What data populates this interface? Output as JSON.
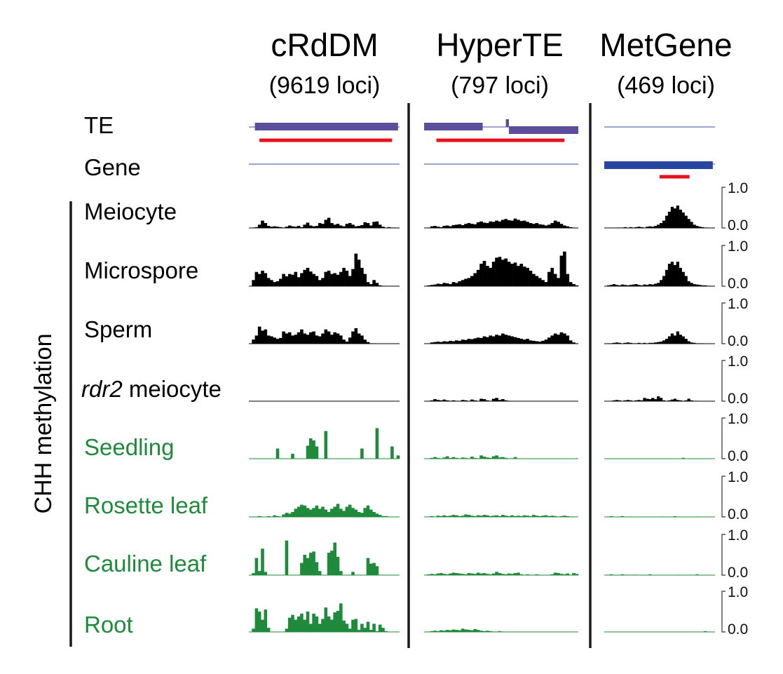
{
  "colors": {
    "te_bar": "#5d4e9c",
    "gene_bar": "#2745a1",
    "locus_bar": "#e5121c",
    "black_track": "#000000",
    "green_track": "#1f8a3b",
    "baseline_blue": "#3a4aa0",
    "divider": "#1a1a1a"
  },
  "columns": [
    {
      "title": "cRdDM",
      "subtitle": "(9619 loci)"
    },
    {
      "title": "HyperTE",
      "subtitle": "(797 loci)"
    },
    {
      "title": "MetGene",
      "subtitle": "(469 loci)"
    }
  ],
  "annotation_labels": {
    "te": "TE",
    "gene": "Gene"
  },
  "y_axis_label": "CHH methylation",
  "chart_data": {
    "type": "bar",
    "ylim": [
      0.0,
      1.0
    ],
    "tick_labels": [
      "1.0",
      "0.0"
    ],
    "annotation_tracks": {
      "cRdDM": {
        "te": [
          [
            0.04,
            0.99
          ]
        ],
        "gene": [],
        "locus": [
          [
            0.07,
            0.95
          ]
        ]
      },
      "HyperTE": {
        "te": [
          [
            0.0,
            0.38
          ],
          [
            0.53,
            0.55
          ],
          [
            0.55,
            1.0
          ]
        ],
        "gene": [],
        "locus": [
          [
            0.08,
            0.91
          ]
        ]
      },
      "MetGene": {
        "te": [],
        "gene": [
          [
            0.0,
            0.98
          ]
        ],
        "locus": [
          [
            0.5,
            0.77
          ]
        ]
      }
    },
    "series": [
      {
        "name": "Meiocyte",
        "color": "black",
        "cRdDM": [
          0,
          0.01,
          0.02,
          0.08,
          0.18,
          0.12,
          0.05,
          0.03,
          0.04,
          0.03,
          0.02,
          0.01,
          0.03,
          0.06,
          0.04,
          0.03,
          0.05,
          0.02,
          0.08,
          0.13,
          0.06,
          0.04,
          0.05,
          0.12,
          0.1,
          0.2,
          0.25,
          0.12,
          0.08,
          0.1,
          0.06,
          0.04,
          0.1,
          0.12,
          0.08,
          0.04,
          0.05,
          0.07,
          0.14,
          0.12,
          0.06,
          0.15,
          0.16,
          0.08,
          0.03,
          0.01,
          0.02,
          0.01,
          0.01,
          0
        ],
        "HyperTE": [
          0,
          0.01,
          0.04,
          0.05,
          0.03,
          0.02,
          0.05,
          0.06,
          0.04,
          0.07,
          0.08,
          0.09,
          0.07,
          0.1,
          0.12,
          0.1,
          0.09,
          0.14,
          0.16,
          0.13,
          0.12,
          0.16,
          0.15,
          0.18,
          0.16,
          0.2,
          0.22,
          0.19,
          0.18,
          0.23,
          0.2,
          0.17,
          0.18,
          0.15,
          0.12,
          0.1,
          0.12,
          0.09,
          0.08,
          0.06,
          0.08,
          0.12,
          0.18,
          0.15,
          0.1,
          0.06,
          0.04,
          0.02,
          0.01,
          0
        ],
        "MetGene": [
          0,
          0,
          0,
          0,
          0.01,
          0.01,
          0.01,
          0.02,
          0,
          0.02,
          0.01,
          0.02,
          0.03,
          0.02,
          0.01,
          0.03,
          0.04,
          0.03,
          0.05,
          0.08,
          0.12,
          0.18,
          0.3,
          0.4,
          0.52,
          0.48,
          0.55,
          0.45,
          0.38,
          0.3,
          0.22,
          0.15,
          0.08,
          0.05,
          0.03,
          0.02,
          0.01,
          0.01,
          0,
          0
        ]
      },
      {
        "name": "Microspore",
        "color": "black",
        "cRdDM": [
          0,
          0.15,
          0.35,
          0.3,
          0.38,
          0.32,
          0.2,
          0.15,
          0.1,
          0.12,
          0.18,
          0.3,
          0.24,
          0.3,
          0.28,
          0.35,
          0.22,
          0.32,
          0.4,
          0.45,
          0.36,
          0.3,
          0.25,
          0.15,
          0.2,
          0.35,
          0.38,
          0.3,
          0.32,
          0.28,
          0.35,
          0.45,
          0.38,
          0.25,
          0.42,
          0.8,
          0.65,
          0.45,
          0.3,
          0.1,
          0.05,
          0.15,
          0.08,
          0.02,
          0.01,
          0,
          0,
          0,
          0,
          0
        ],
        "HyperTE": [
          0,
          0.02,
          0.03,
          0.04,
          0.06,
          0.05,
          0.08,
          0.07,
          0.05,
          0.1,
          0.08,
          0.12,
          0.15,
          0.18,
          0.2,
          0.25,
          0.32,
          0.4,
          0.55,
          0.62,
          0.5,
          0.45,
          0.6,
          0.7,
          0.72,
          0.65,
          0.68,
          0.6,
          0.55,
          0.58,
          0.5,
          0.55,
          0.48,
          0.45,
          0.38,
          0.3,
          0.25,
          0.2,
          0.15,
          0.1,
          0.35,
          0.45,
          0.3,
          0.2,
          0.75,
          0.85,
          0.3,
          0.1,
          0.05,
          0.02
        ],
        "MetGene": [
          0,
          0.02,
          0.03,
          0.05,
          0.03,
          0.02,
          0.04,
          0.03,
          0.02,
          0.03,
          0.04,
          0.05,
          0.03,
          0.02,
          0.04,
          0.03,
          0.05,
          0.04,
          0.06,
          0.08,
          0.15,
          0.25,
          0.4,
          0.55,
          0.6,
          0.52,
          0.6,
          0.45,
          0.35,
          0.25,
          0.12,
          0.08,
          0.05,
          0.04,
          0.03,
          0.02,
          0.02,
          0.01,
          0.01,
          0
        ]
      },
      {
        "name": "Sperm",
        "color": "black",
        "cRdDM": [
          0,
          0.1,
          0.2,
          0.42,
          0.32,
          0.35,
          0.2,
          0.18,
          0.15,
          0.12,
          0.14,
          0.3,
          0.25,
          0.28,
          0.2,
          0.22,
          0.28,
          0.35,
          0.25,
          0.22,
          0.28,
          0.3,
          0.2,
          0.18,
          0.25,
          0.35,
          0.3,
          0.22,
          0.28,
          0.25,
          0.2,
          0.1,
          0.05,
          0.15,
          0.3,
          0.38,
          0.25,
          0.2,
          0.1,
          0.04,
          0.01,
          0.01,
          0,
          0,
          0,
          0,
          0,
          0,
          0,
          0
        ],
        "HyperTE": [
          0,
          0.01,
          0.03,
          0.04,
          0.05,
          0.04,
          0.06,
          0.05,
          0.07,
          0.06,
          0.08,
          0.07,
          0.1,
          0.09,
          0.12,
          0.11,
          0.13,
          0.15,
          0.14,
          0.18,
          0.16,
          0.2,
          0.18,
          0.22,
          0.2,
          0.25,
          0.22,
          0.2,
          0.18,
          0.16,
          0.14,
          0.12,
          0.1,
          0.12,
          0.08,
          0.07,
          0.06,
          0.05,
          0.07,
          0.1,
          0.15,
          0.2,
          0.25,
          0.22,
          0.28,
          0.25,
          0.2,
          0.08,
          0.03,
          0.01
        ],
        "MetGene": [
          0,
          0.01,
          0.01,
          0.02,
          0.03,
          0.02,
          0.01,
          0.02,
          0.03,
          0.02,
          0.01,
          0.01,
          0.02,
          0.01,
          0.02,
          0.01,
          0.02,
          0.02,
          0.03,
          0.04,
          0.05,
          0.08,
          0.12,
          0.18,
          0.25,
          0.2,
          0.3,
          0.22,
          0.18,
          0.12,
          0.06,
          0.03,
          0.02,
          0.01,
          0.01,
          0.01,
          0,
          0,
          0,
          0
        ]
      },
      {
        "name": "rdr2 meiocyte",
        "name_italic": "rdr2",
        "name_rest": " meiocyte",
        "color": "black",
        "cRdDM": [
          0,
          0,
          0,
          0,
          0,
          0,
          0,
          0,
          0,
          0,
          0,
          0,
          0,
          0,
          0,
          0,
          0,
          0,
          0,
          0,
          0,
          0,
          0,
          0,
          0,
          0,
          0,
          0,
          0,
          0,
          0,
          0,
          0,
          0,
          0,
          0,
          0,
          0,
          0,
          0,
          0,
          0,
          0,
          0,
          0,
          0,
          0,
          0,
          0,
          0
        ],
        "HyperTE": [
          0,
          0.01,
          0.02,
          0.05,
          0.03,
          0.02,
          0.04,
          0.02,
          0.01,
          0.02,
          0.01,
          0.01,
          0.03,
          0.02,
          0.01,
          0.04,
          0.02,
          0.01,
          0.06,
          0.05,
          0.02,
          0.01,
          0.06,
          0.08,
          0.03,
          0.05,
          0.02,
          0.01,
          0,
          0,
          0,
          0,
          0,
          0,
          0,
          0,
          0,
          0,
          0,
          0,
          0,
          0,
          0,
          0,
          0,
          0,
          0,
          0,
          0,
          0
        ],
        "MetGene": [
          0,
          0,
          0.01,
          0.02,
          0.03,
          0.02,
          0.01,
          0.02,
          0.03,
          0.02,
          0.01,
          0.02,
          0.03,
          0.02,
          0.08,
          0.06,
          0.05,
          0.08,
          0.05,
          0.12,
          0.08,
          0.02,
          0.01,
          0.02,
          0.04,
          0.06,
          0.03,
          0.02,
          0.01,
          0.02,
          0.06,
          0.02,
          0.01,
          0.01,
          0,
          0,
          0,
          0,
          0,
          0
        ]
      },
      {
        "name": "Seedling",
        "color": "green",
        "cRdDM": [
          0,
          0,
          0,
          0,
          0,
          0,
          0,
          0,
          0,
          0.25,
          0,
          0,
          0,
          0,
          0.12,
          0,
          0,
          0,
          0,
          0.32,
          0.5,
          0.45,
          0.3,
          0,
          0,
          0.68,
          0,
          0,
          0,
          0,
          0,
          0,
          0,
          0,
          0,
          0,
          0,
          0.25,
          0,
          0,
          0,
          0,
          0.75,
          0,
          0,
          0,
          0,
          0.3,
          0,
          0.08
        ],
        "HyperTE": [
          0,
          0.01,
          0.02,
          0.04,
          0.02,
          0.01,
          0.03,
          0.06,
          0.02,
          0.04,
          0.02,
          0.01,
          0.03,
          0.02,
          0.01,
          0.05,
          0.02,
          0.01,
          0.08,
          0.05,
          0.03,
          0.02,
          0.06,
          0.08,
          0.03,
          0.04,
          0.02,
          0.01,
          0.01,
          0.04,
          0,
          0,
          0,
          0,
          0,
          0,
          0,
          0,
          0,
          0,
          0,
          0,
          0,
          0,
          0,
          0,
          0,
          0,
          0,
          0
        ],
        "MetGene": [
          0,
          0,
          0,
          0,
          0,
          0,
          0,
          0,
          0,
          0,
          0,
          0,
          0,
          0,
          0,
          0,
          0,
          0,
          0,
          0,
          0,
          0,
          0,
          0,
          0,
          0,
          0,
          0,
          0.02,
          0,
          0,
          0,
          0,
          0,
          0,
          0,
          0,
          0,
          0,
          0
        ]
      },
      {
        "name": "Rosette leaf",
        "color": "green",
        "cRdDM": [
          0,
          0,
          0.01,
          0.02,
          0.01,
          0,
          0.02,
          0.01,
          0.04,
          0.02,
          0.01,
          0.06,
          0.1,
          0.08,
          0.12,
          0.2,
          0.25,
          0.3,
          0.28,
          0.22,
          0.18,
          0.22,
          0.28,
          0.2,
          0.25,
          0.18,
          0.12,
          0.2,
          0.25,
          0.32,
          0.2,
          0.15,
          0.25,
          0.3,
          0.22,
          0.18,
          0.12,
          0.1,
          0.22,
          0.28,
          0.18,
          0.12,
          0.08,
          0.05,
          0.02,
          0.02,
          0.01,
          0,
          0,
          0
        ],
        "HyperTE": [
          0,
          0.01,
          0.02,
          0.01,
          0.03,
          0.02,
          0.04,
          0.02,
          0.03,
          0.05,
          0.04,
          0.02,
          0.03,
          0.06,
          0.05,
          0.03,
          0.02,
          0.04,
          0.03,
          0.05,
          0.04,
          0.02,
          0.03,
          0.04,
          0.02,
          0.05,
          0.03,
          0.02,
          0.04,
          0.02,
          0.03,
          0.02,
          0.04,
          0.03,
          0.02,
          0.05,
          0.03,
          0.02,
          0.03,
          0.04,
          0.02,
          0.03,
          0.02,
          0.01,
          0.02,
          0.03,
          0.02,
          0.01,
          0.01,
          0
        ],
        "MetGene": [
          0,
          0.01,
          0.02,
          0.01,
          0,
          0.01,
          0.02,
          0,
          0,
          0.01,
          0,
          0,
          0,
          0,
          0,
          0,
          0,
          0,
          0,
          0,
          0.01,
          0,
          0,
          0,
          0,
          0.02,
          0,
          0,
          0,
          0,
          0,
          0,
          0,
          0.01,
          0,
          0,
          0,
          0,
          0,
          0
        ]
      },
      {
        "name": "Cauline leaf",
        "color": "green",
        "cRdDM": [
          0,
          0.05,
          0.42,
          0.1,
          0.65,
          0.08,
          0,
          0,
          0,
          0,
          0,
          0,
          0.85,
          0,
          0,
          0,
          0,
          0.3,
          0.5,
          0.42,
          0.55,
          0.58,
          0.32,
          0.1,
          0,
          0,
          0.55,
          0.6,
          0.8,
          0.45,
          0.1,
          0,
          0,
          0,
          0.08,
          0,
          0,
          0,
          0,
          0.42,
          0.28,
          0.3,
          0.22,
          0,
          0,
          0,
          0,
          0,
          0,
          0
        ],
        "HyperTE": [
          0,
          0.02,
          0.03,
          0.02,
          0.04,
          0.05,
          0.03,
          0.02,
          0.04,
          0.06,
          0.05,
          0.04,
          0.03,
          0.02,
          0.05,
          0.04,
          0.03,
          0.06,
          0.04,
          0.05,
          0.03,
          0.02,
          0.04,
          0.08,
          0.05,
          0.03,
          0.02,
          0.04,
          0.03,
          0.05,
          0.06,
          0.02,
          0.01,
          0.02,
          0.01,
          0.01,
          0.02,
          0.01,
          0,
          0,
          0,
          0.02,
          0.06,
          0.05,
          0.03,
          0.02,
          0.04,
          0.01,
          0.05,
          0.03
        ],
        "MetGene": [
          0,
          0.01,
          0.02,
          0.01,
          0.01,
          0,
          0.02,
          0.01,
          0.01,
          0,
          0.01,
          0.01,
          0,
          0,
          0,
          0,
          0.02,
          0,
          0,
          0,
          0,
          0,
          0,
          0,
          0,
          0,
          0.01,
          0,
          0,
          0,
          0,
          0,
          0,
          0.02,
          0,
          0,
          0,
          0,
          0,
          0
        ]
      },
      {
        "name": "Root",
        "color": "green",
        "cRdDM": [
          0,
          0.08,
          0.58,
          0.5,
          0.3,
          0.55,
          0.1,
          0,
          0,
          0,
          0,
          0,
          0.08,
          0.35,
          0.42,
          0.3,
          0.38,
          0.45,
          0.3,
          0.5,
          0.2,
          0.45,
          0.38,
          0.2,
          0.32,
          0.6,
          0.38,
          0.3,
          0.48,
          0.52,
          0.7,
          0.28,
          0.2,
          0.08,
          0.3,
          0.32,
          0.05,
          0.2,
          0.1,
          0.25,
          0.05,
          0.2,
          0.02,
          0.18,
          0.1,
          0.02,
          0,
          0,
          0,
          0
        ],
        "HyperTE": [
          0,
          0.01,
          0.02,
          0.03,
          0.02,
          0.04,
          0.03,
          0.05,
          0.04,
          0.06,
          0.05,
          0.04,
          0.08,
          0.06,
          0.05,
          0.04,
          0.07,
          0.05,
          0.03,
          0.02,
          0.03,
          0.02,
          0.01,
          0.01,
          0.02,
          0.01,
          0,
          0,
          0,
          0,
          0,
          0,
          0,
          0,
          0,
          0,
          0,
          0,
          0,
          0,
          0,
          0,
          0,
          0,
          0,
          0,
          0,
          0,
          0,
          0
        ],
        "MetGene": [
          0,
          0,
          0,
          0,
          0,
          0,
          0,
          0,
          0,
          0,
          0,
          0,
          0,
          0,
          0,
          0,
          0,
          0,
          0,
          0,
          0,
          0,
          0,
          0,
          0,
          0,
          0,
          0,
          0,
          0,
          0,
          0,
          0,
          0,
          0,
          0,
          0.02,
          0,
          0,
          0
        ]
      }
    ]
  }
}
